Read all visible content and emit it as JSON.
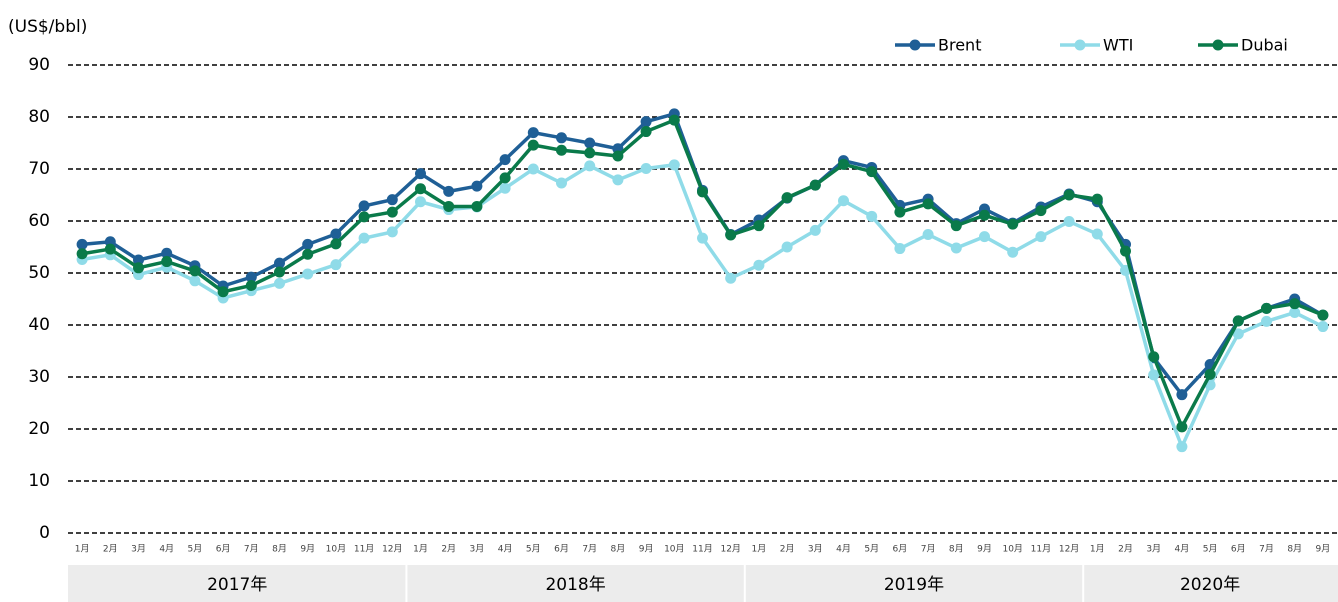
{
  "chart_data": {
    "type": "line",
    "y_axis_label": "(US$/bbl)",
    "categories": [
      "1月",
      "2月",
      "3月",
      "4月",
      "5月",
      "6月",
      "7月",
      "8月",
      "9月",
      "10月",
      "11月",
      "12月",
      "1月",
      "2月",
      "3月",
      "4月",
      "5月",
      "6月",
      "7月",
      "8月",
      "9月",
      "10月",
      "11月",
      "12月",
      "1月",
      "2月",
      "3月",
      "4月",
      "5月",
      "6月",
      "7月",
      "8月",
      "9月",
      "10月",
      "11月",
      "12月",
      "1月",
      "2月",
      "3月",
      "4月",
      "5月",
      "6月",
      "7月",
      "8月",
      "9月"
    ],
    "year_labels": [
      "2017年",
      "2018年",
      "2019年",
      "2020年"
    ],
    "series": [
      {
        "name": "Brent",
        "color": "#1f5f96",
        "values": [
          55.5,
          56,
          52.5,
          53.8,
          51.4,
          47.5,
          49.2,
          51.9,
          55.5,
          57.5,
          62.9,
          64.1,
          69.1,
          65.7,
          66.7,
          71.8,
          77.0,
          76.0,
          75.0,
          73.9,
          79.1,
          80.6,
          65.9,
          57.4,
          60.2,
          64.4,
          66.9,
          71.6,
          70.3,
          63.0,
          64.2,
          59.5,
          62.3,
          59.6,
          62.7,
          65.2,
          63.7,
          55.5,
          33.7,
          26.6,
          32.4,
          40.8,
          43.2,
          45.0,
          41.9
        ]
      },
      {
        "name": "WTI",
        "color": "#8fdbe8",
        "values": [
          52.6,
          53.5,
          49.7,
          51.1,
          48.5,
          45.2,
          46.6,
          48.0,
          49.8,
          51.6,
          56.7,
          57.9,
          63.7,
          62.2,
          62.7,
          66.3,
          70.0,
          67.3,
          70.6,
          67.9,
          70.1,
          70.8,
          56.7,
          49.0,
          51.5,
          55.0,
          58.2,
          63.9,
          60.9,
          54.7,
          57.4,
          54.8,
          57.0,
          54.0,
          57.0,
          59.9,
          57.5,
          50.5,
          30.4,
          16.6,
          28.5,
          38.3,
          40.7,
          42.4,
          39.7
        ]
      },
      {
        "name": "Dubai",
        "color": "#0a7a4a",
        "values": [
          53.7,
          54.6,
          51.0,
          52.2,
          50.4,
          46.4,
          47.6,
          50.2,
          53.6,
          55.6,
          60.8,
          61.7,
          66.2,
          62.8,
          62.8,
          68.3,
          74.6,
          73.6,
          73.1,
          72.5,
          77.2,
          79.4,
          65.6,
          57.3,
          59.1,
          64.5,
          66.9,
          70.9,
          69.5,
          61.7,
          63.3,
          59.1,
          61.1,
          59.4,
          62.0,
          65.0,
          64.2,
          54.2,
          33.9,
          20.4,
          30.5,
          40.8,
          43.2,
          44.1,
          41.9
        ]
      }
    ],
    "ylim": [
      0,
      90
    ],
    "yticks": [
      0,
      10,
      20,
      30,
      40,
      50,
      60,
      70,
      80,
      90
    ],
    "grid": true,
    "legend": "top-right"
  }
}
